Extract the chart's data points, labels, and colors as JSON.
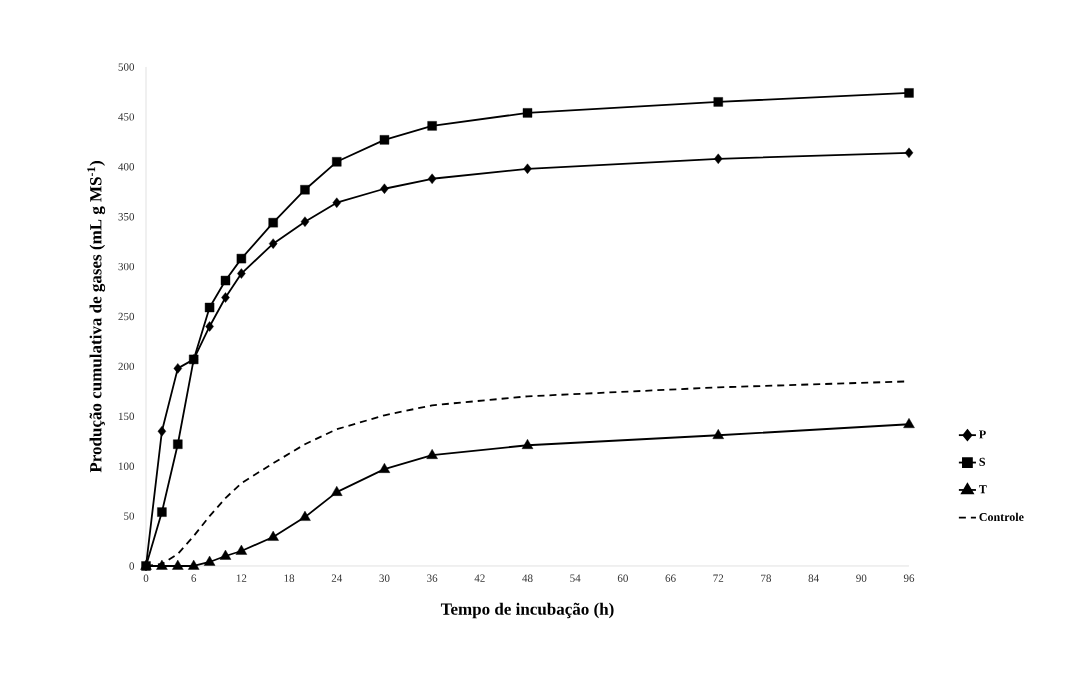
{
  "chart_data": {
    "type": "line",
    "xlabel": "Tempo de incubação (h)",
    "ylabel": "Produção cumulativa de gases (mL g MS$^{-1}$)",
    "x": [
      0,
      2,
      4,
      6,
      8,
      10,
      12,
      16,
      20,
      24,
      30,
      36,
      48,
      72,
      96
    ],
    "series": [
      {
        "name": "P",
        "color": "#000000",
        "marker": "diamond",
        "line_style": "solid",
        "values": [
          0,
          135,
          198,
          207,
          240,
          269,
          293,
          323,
          345,
          364,
          378,
          388,
          398,
          408,
          414
        ]
      },
      {
        "name": "S",
        "color": "#000000",
        "marker": "square",
        "line_style": "solid",
        "values": [
          0,
          54,
          122,
          207,
          259,
          286,
          308,
          344,
          377,
          405,
          427,
          441,
          454,
          465,
          474
        ]
      },
      {
        "name": "T",
        "color": "#000000",
        "marker": "triangle",
        "line_style": "solid",
        "values": [
          0,
          0,
          0,
          0,
          4,
          10,
          15,
          29,
          49,
          74,
          97,
          111,
          121,
          131,
          142
        ]
      },
      {
        "name": "Controle",
        "color": "#000000",
        "marker": "none",
        "line_style": "dashed",
        "values": [
          0,
          2,
          12,
          30,
          50,
          68,
          83,
          103,
          122,
          137,
          151,
          161,
          170,
          179,
          185
        ]
      }
    ],
    "xlim": [
      0,
      96
    ],
    "xticks": [
      0,
      6,
      12,
      18,
      24,
      30,
      36,
      42,
      48,
      54,
      60,
      66,
      72,
      78,
      84,
      90,
      96
    ],
    "ylim": [
      0,
      500
    ],
    "yticks": [
      0,
      50,
      100,
      150,
      200,
      250,
      300,
      350,
      400,
      450,
      500
    ],
    "grid": false,
    "legend": "right"
  }
}
